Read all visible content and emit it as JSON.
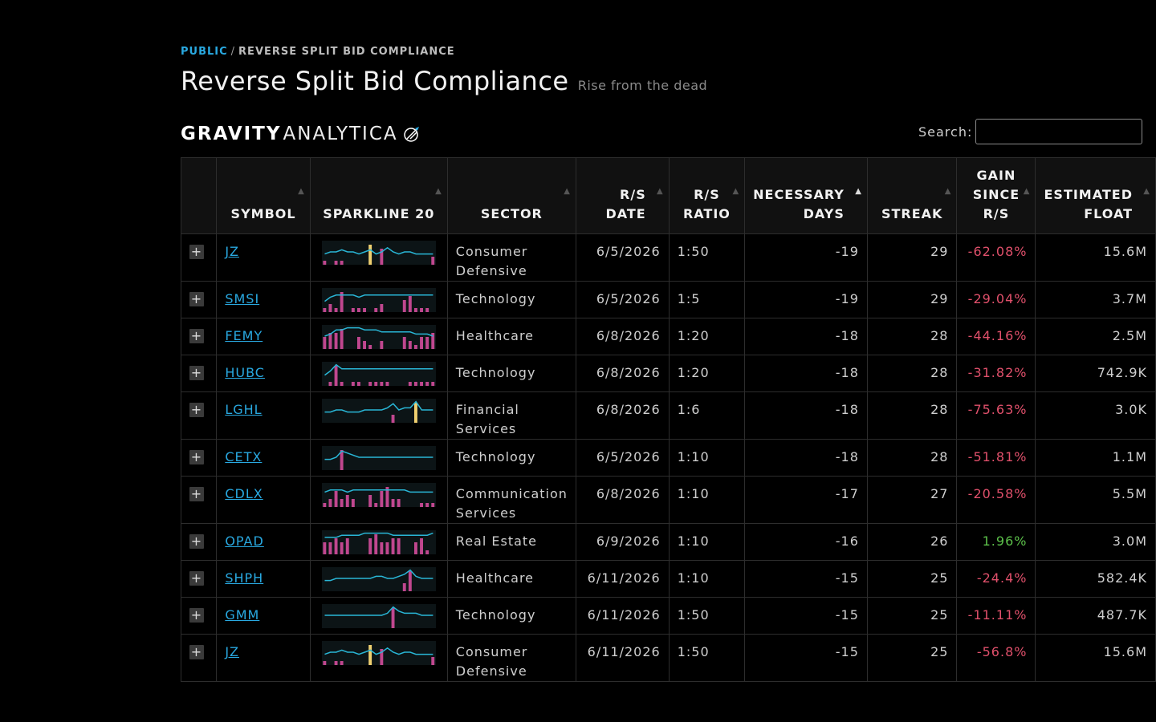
{
  "breadcrumb": {
    "root": "PUBLIC",
    "separator": "/",
    "current": "REVERSE SPLIT BID COMPLIANCE"
  },
  "page": {
    "title": "Reverse Split Bid Compliance",
    "subtitle": "Rise from the dead"
  },
  "logo": {
    "bold": "GRAVITY",
    "light": "ANALYTICA"
  },
  "search": {
    "label": "Search:",
    "value": "",
    "placeholder": ""
  },
  "columns": {
    "symbol": "SYMBOL",
    "sparkline": "SPARKLINE 20",
    "sector": "SECTOR",
    "rs_date": "R/S DATE",
    "rs_ratio": "R/S RATIO",
    "necessary_days": "NECESSARY DAYS",
    "streak": "STREAK",
    "gain": "GAIN SINCE R/S",
    "float": "ESTIMATED FLOAT"
  },
  "sort": {
    "column": "necessary_days",
    "direction": "asc"
  },
  "colors": {
    "accent": "#29a9e1",
    "negative": "#e0506b",
    "positive": "#5cc04a",
    "spark_line": "#29b6d6",
    "spark_bar": "#c0478f",
    "spark_highlight": "#f0d070"
  },
  "rows": [
    {
      "symbol": "JZ",
      "sector": "Consumer Defensive",
      "rs_date": "6/5/2026",
      "rs_ratio": "1:50",
      "necessary_days": "-19",
      "streak": "29",
      "gain": "-62.08%",
      "gain_sign": "neg",
      "float": "15.6M",
      "spark": {
        "line": [
          6,
          5,
          5,
          4,
          5,
          5,
          6,
          5,
          4,
          6,
          5,
          3,
          5,
          6,
          5,
          5,
          6,
          6,
          6,
          6
        ],
        "bars": [
          1,
          0,
          1,
          1,
          0,
          0,
          0,
          0,
          5,
          0,
          4,
          0,
          0,
          0,
          0,
          0,
          0,
          0,
          0,
          2
        ],
        "marker": 8
      }
    },
    {
      "symbol": "SMSI",
      "sector": "Technology",
      "rs_date": "6/5/2026",
      "rs_ratio": "1:5",
      "necessary_days": "-19",
      "streak": "29",
      "gain": "-29.04%",
      "gain_sign": "neg",
      "float": "3.7M",
      "spark": {
        "line": [
          6,
          4,
          3,
          3,
          3,
          3,
          4,
          3,
          3,
          3,
          3,
          3,
          3,
          3,
          3,
          3,
          3,
          3,
          3,
          3
        ],
        "bars": [
          1,
          2,
          1,
          5,
          0,
          1,
          1,
          1,
          0,
          1,
          2,
          0,
          0,
          0,
          3,
          4,
          1,
          1,
          1,
          0
        ],
        "marker": -1
      }
    },
    {
      "symbol": "FEMY",
      "sector": "Healthcare",
      "rs_date": "6/8/2026",
      "rs_ratio": "1:20",
      "necessary_days": "-18",
      "streak": "28",
      "gain": "-44.16%",
      "gain_sign": "neg",
      "float": "2.5M",
      "spark": {
        "line": [
          5,
          4,
          2,
          2,
          1,
          1,
          1,
          2,
          2,
          2,
          3,
          3,
          3,
          3,
          3,
          3,
          4,
          4,
          4,
          5
        ],
        "bars": [
          3,
          4,
          4,
          5,
          0,
          0,
          3,
          2,
          1,
          0,
          2,
          0,
          0,
          0,
          3,
          2,
          1,
          3,
          3,
          4
        ],
        "marker": -1
      }
    },
    {
      "symbol": "HUBC",
      "sector": "Technology",
      "rs_date": "6/8/2026",
      "rs_ratio": "1:20",
      "necessary_days": "-18",
      "streak": "28",
      "gain": "-31.82%",
      "gain_sign": "neg",
      "float": "742.9K",
      "spark": {
        "line": [
          6,
          4,
          1,
          3,
          3,
          3,
          3,
          3,
          3,
          3,
          3,
          3,
          3,
          3,
          3,
          3,
          3,
          3,
          3,
          3
        ],
        "bars": [
          0,
          1,
          5,
          1,
          0,
          1,
          1,
          0,
          1,
          1,
          1,
          1,
          0,
          0,
          0,
          1,
          1,
          1,
          1,
          1
        ],
        "marker": -1
      }
    },
    {
      "symbol": "LGHL",
      "sector": "Financial Services",
      "rs_date": "6/8/2026",
      "rs_ratio": "1:6",
      "necessary_days": "-18",
      "streak": "28",
      "gain": "-75.63%",
      "gain_sign": "neg",
      "float": "3.0K",
      "spark": {
        "line": [
          6,
          6,
          5,
          5,
          6,
          6,
          6,
          5,
          5,
          5,
          5,
          4,
          2,
          5,
          4,
          4,
          1,
          5,
          5,
          5
        ],
        "bars": [
          0,
          0,
          0,
          0,
          0,
          0,
          0,
          0,
          0,
          0,
          0,
          0,
          2,
          0,
          0,
          0,
          5,
          0,
          0,
          0
        ],
        "marker": 16
      }
    },
    {
      "symbol": "CETX",
      "sector": "Technology",
      "rs_date": "6/5/2026",
      "rs_ratio": "1:10",
      "necessary_days": "-18",
      "streak": "28",
      "gain": "-51.81%",
      "gain_sign": "neg",
      "float": "1.1M",
      "spark": {
        "line": [
          6,
          6,
          5,
          2,
          3,
          4,
          5,
          5,
          5,
          5,
          5,
          5,
          5,
          5,
          5,
          5,
          5,
          5,
          5,
          5
        ],
        "bars": [
          0,
          0,
          0,
          5,
          0,
          0,
          0,
          0,
          0,
          0,
          0,
          0,
          0,
          0,
          0,
          0,
          0,
          0,
          0,
          0
        ],
        "marker": -1
      }
    },
    {
      "symbol": "CDLX",
      "sector": "Communication Services",
      "rs_date": "6/8/2026",
      "rs_ratio": "1:10",
      "necessary_days": "-17",
      "streak": "27",
      "gain": "-20.58%",
      "gain_sign": "neg",
      "float": "5.5M",
      "spark": {
        "line": [
          4,
          3,
          3,
          3,
          4,
          3,
          3,
          3,
          3,
          3,
          3,
          3,
          3,
          3,
          3,
          4,
          4,
          4,
          4,
          4
        ],
        "bars": [
          1,
          2,
          4,
          2,
          3,
          2,
          0,
          0,
          3,
          1,
          4,
          5,
          2,
          2,
          0,
          0,
          0,
          1,
          1,
          1
        ],
        "marker": -1
      }
    },
    {
      "symbol": "OPAD",
      "sector": "Real Estate",
      "rs_date": "6/9/2026",
      "rs_ratio": "1:10",
      "necessary_days": "-16",
      "streak": "26",
      "gain": "1.96%",
      "gain_sign": "pos",
      "float": "3.0M",
      "spark": {
        "line": [
          3,
          3,
          3,
          2,
          2,
          2,
          2,
          1,
          1,
          1,
          1,
          1,
          2,
          2,
          2,
          2,
          2,
          2,
          2,
          1
        ],
        "bars": [
          3,
          3,
          4,
          3,
          4,
          0,
          0,
          0,
          4,
          5,
          3,
          3,
          4,
          4,
          0,
          0,
          3,
          4,
          1,
          0
        ],
        "marker": -1
      }
    },
    {
      "symbol": "SHPH",
      "sector": "Healthcare",
      "rs_date": "6/11/2026",
      "rs_ratio": "1:10",
      "necessary_days": "-15",
      "streak": "25",
      "gain": "-24.4%",
      "gain_sign": "neg",
      "float": "582.4K",
      "spark": {
        "line": [
          6,
          6,
          5,
          5,
          5,
          5,
          5,
          5,
          5,
          4,
          4,
          5,
          5,
          4,
          3,
          1,
          4,
          5,
          5,
          5
        ],
        "bars": [
          0,
          0,
          0,
          0,
          0,
          0,
          0,
          0,
          0,
          0,
          0,
          0,
          0,
          0,
          2,
          5,
          0,
          0,
          0,
          0
        ],
        "marker": -1
      }
    },
    {
      "symbol": "GMM",
      "sector": "Technology",
      "rs_date": "6/11/2026",
      "rs_ratio": "1:50",
      "necessary_days": "-15",
      "streak": "25",
      "gain": "-11.11%",
      "gain_sign": "neg",
      "float": "487.7K",
      "spark": {
        "line": [
          5,
          5,
          5,
          5,
          5,
          5,
          5,
          5,
          5,
          5,
          5,
          4,
          1,
          3,
          4,
          4,
          4,
          5,
          5,
          5
        ],
        "bars": [
          0,
          0,
          0,
          0,
          0,
          0,
          0,
          0,
          0,
          0,
          0,
          0,
          5,
          0,
          0,
          0,
          0,
          0,
          0,
          0
        ],
        "marker": -1
      }
    },
    {
      "symbol": "JZ",
      "sector": "Consumer Defensive",
      "rs_date": "6/11/2026",
      "rs_ratio": "1:50",
      "necessary_days": "-15",
      "streak": "25",
      "gain": "-56.8%",
      "gain_sign": "neg",
      "float": "15.6M",
      "spark": {
        "line": [
          6,
          5,
          5,
          4,
          5,
          5,
          6,
          5,
          4,
          6,
          5,
          3,
          5,
          6,
          5,
          5,
          6,
          6,
          6,
          6
        ],
        "bars": [
          1,
          0,
          1,
          1,
          0,
          0,
          0,
          0,
          5,
          0,
          4,
          0,
          0,
          0,
          0,
          0,
          0,
          0,
          0,
          2
        ],
        "marker": 8
      }
    }
  ]
}
